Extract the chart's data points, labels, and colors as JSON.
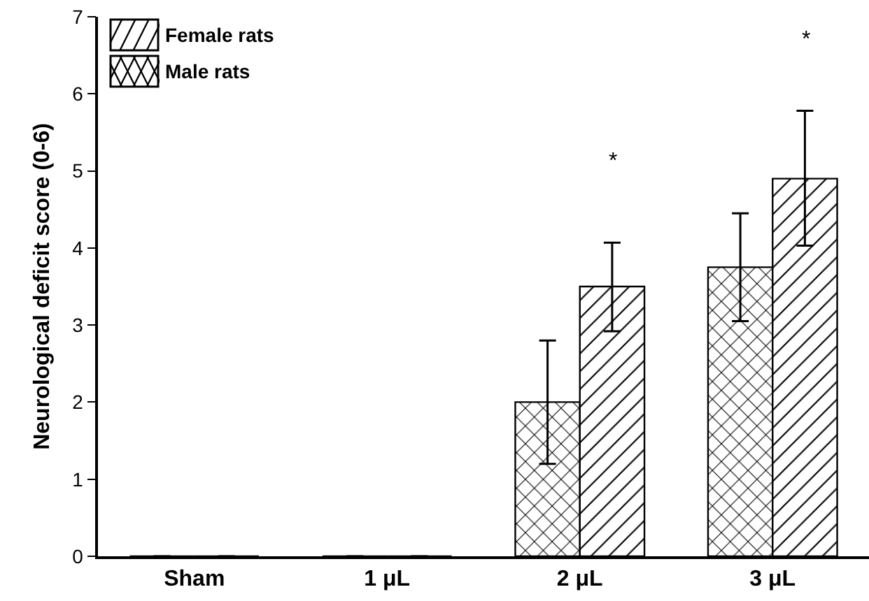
{
  "chart_data": {
    "type": "bar",
    "ylabel": "Neurological deficit score (0-6)",
    "categories": [
      "Sham",
      "1 μL",
      "2 μL",
      "3 μL"
    ],
    "series": [
      {
        "name": "Male rats",
        "color": "#000000",
        "values": [
          0,
          0,
          2.0,
          3.75
        ],
        "errors": [
          null,
          null,
          [
            1.2,
            2.8
          ],
          [
            3.05,
            4.45
          ]
        ]
      },
      {
        "name": "Female rats",
        "color": "#000000",
        "values": [
          0,
          0,
          3.5,
          4.9
        ],
        "errors": [
          null,
          null,
          [
            2.92,
            4.07
          ],
          [
            4.03,
            5.78
          ]
        ]
      }
    ],
    "ylim": [
      0,
      7
    ],
    "yticks": [
      0,
      1,
      2,
      3,
      4,
      5,
      6,
      7
    ],
    "grid": false,
    "legend": "top left",
    "annotations": [
      "*",
      "*"
    ]
  }
}
